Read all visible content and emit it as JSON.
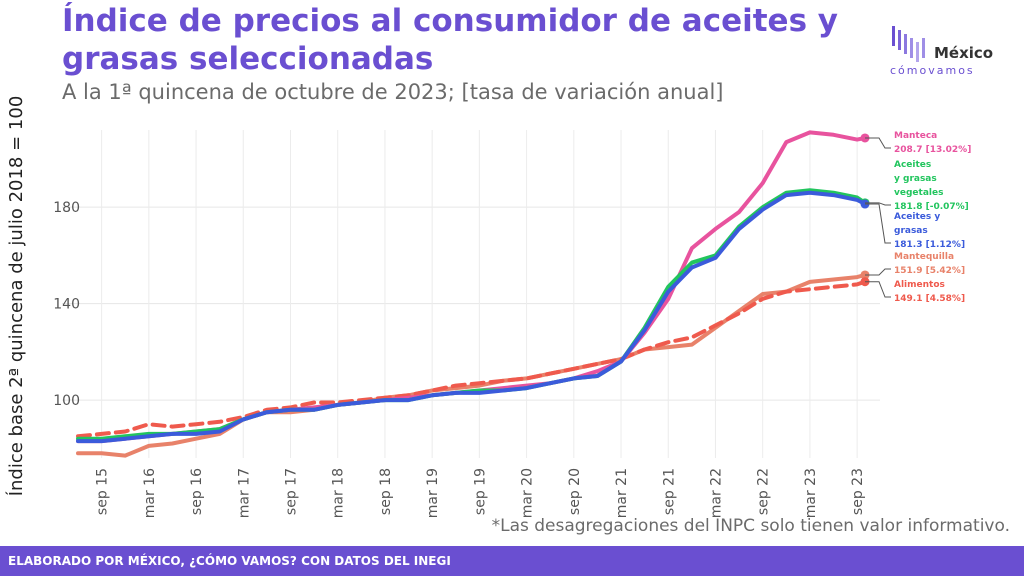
{
  "header": {
    "title": "Índice de precios al consumidor de aceites y grasas seleccionadas",
    "subtitle": "A la 1ª quincena de octubre de 2023; [tasa de variación anual]"
  },
  "logo": {
    "top": "México",
    "bottom": "cómovamos"
  },
  "footnote": "*Las desagregaciones del INPC solo tienen valor informativo.",
  "footer": "ELABORADO POR MÉXICO, ¿CÓMO VAMOS? CON DATOS DEL INEGI",
  "colors": {
    "brand": "#6a4fd1",
    "manteca": "#e8539e",
    "aceites_vegetales": "#22c55e",
    "aceites_grasas": "#3b5bdb",
    "mantequilla": "#e8826a",
    "alimentos": "#ef5a4d"
  },
  "chart_data": {
    "type": "line",
    "ylabel": "Índice base 2ª quincena de julio 2018 = 100",
    "xlabel": "",
    "yticks": [
      100,
      140,
      180
    ],
    "ylim": [
      76,
      212
    ],
    "xticks": [
      "sep 15",
      "mar 16",
      "sep 16",
      "mar 17",
      "sep 17",
      "mar 18",
      "sep 18",
      "mar 19",
      "sep 19",
      "mar 20",
      "sep 20",
      "mar 21",
      "sep 21",
      "mar 22",
      "sep 22",
      "mar 23",
      "sep 23"
    ],
    "grid": true,
    "legend": "end-of-line labels",
    "x": [
      "2015-06",
      "2015-09",
      "2015-12",
      "2016-03",
      "2016-06",
      "2016-09",
      "2016-12",
      "2017-03",
      "2017-06",
      "2017-09",
      "2017-12",
      "2018-03",
      "2018-06",
      "2018-09",
      "2018-12",
      "2019-03",
      "2019-06",
      "2019-09",
      "2019-12",
      "2020-03",
      "2020-06",
      "2020-09",
      "2020-12",
      "2021-03",
      "2021-06",
      "2021-09",
      "2021-12",
      "2022-03",
      "2022-06",
      "2022-09",
      "2022-12",
      "2023-03",
      "2023-06",
      "2023-09",
      "2023-10"
    ],
    "series": [
      {
        "name": "Manteca",
        "color": "#e8539e",
        "dashed": false,
        "end_label": "Manteca",
        "end_value": "208.7 [13.02%]",
        "values": [
          83,
          83,
          84,
          85,
          86,
          87,
          88,
          92,
          95,
          96,
          97,
          98,
          99,
          100,
          101,
          102,
          103,
          104,
          105,
          106,
          107,
          109,
          112,
          116,
          128,
          142,
          163,
          171,
          178,
          190,
          207,
          211,
          210,
          208,
          208.7
        ]
      },
      {
        "name": "Aceites y grasas vegetales",
        "color": "#22c55e",
        "dashed": false,
        "end_label": "Aceites y grasas vegetales",
        "end_value": "181.8 [-0.07%]",
        "values": [
          84,
          84,
          85,
          86,
          86,
          87,
          88,
          92,
          95,
          96,
          96,
          98,
          99,
          100,
          100,
          102,
          103,
          104,
          104,
          105,
          107,
          109,
          110,
          116,
          130,
          147,
          157,
          160,
          172,
          180,
          186,
          187,
          186,
          184,
          181.8
        ]
      },
      {
        "name": "Aceites y grasas",
        "color": "#3b5bdb",
        "dashed": false,
        "end_label": "Aceites y grasas",
        "end_value": "181.3 [1.12%]",
        "values": [
          83,
          83,
          84,
          85,
          86,
          86,
          87,
          92,
          95,
          96,
          96,
          98,
          99,
          100,
          100,
          102,
          103,
          103,
          104,
          105,
          107,
          109,
          110,
          116,
          129,
          145,
          155,
          159,
          171,
          179,
          185,
          186,
          185,
          183,
          181.3
        ]
      },
      {
        "name": "Mantequilla",
        "color": "#e8826a",
        "dashed": false,
        "end_label": "Mantequilla",
        "end_value": "151.9 [5.42%]",
        "values": [
          78,
          78,
          77,
          81,
          82,
          84,
          86,
          92,
          95,
          95,
          96,
          98,
          99,
          101,
          102,
          104,
          105,
          106,
          108,
          109,
          111,
          113,
          115,
          117,
          121,
          122,
          123,
          130,
          137,
          144,
          145,
          149,
          150,
          151,
          151.9
        ]
      },
      {
        "name": "Alimentos",
        "color": "#ef5a4d",
        "dashed": true,
        "end_label": "Alimentos",
        "end_value": "149.1 [4.58%]",
        "values": [
          85,
          86,
          87,
          90,
          89,
          90,
          91,
          93,
          96,
          97,
          99,
          99,
          100,
          101,
          102,
          104,
          106,
          107,
          108,
          109,
          111,
          113,
          115,
          117,
          121,
          124,
          126,
          131,
          136,
          142,
          145,
          146,
          147,
          148,
          149.1
        ]
      }
    ]
  }
}
